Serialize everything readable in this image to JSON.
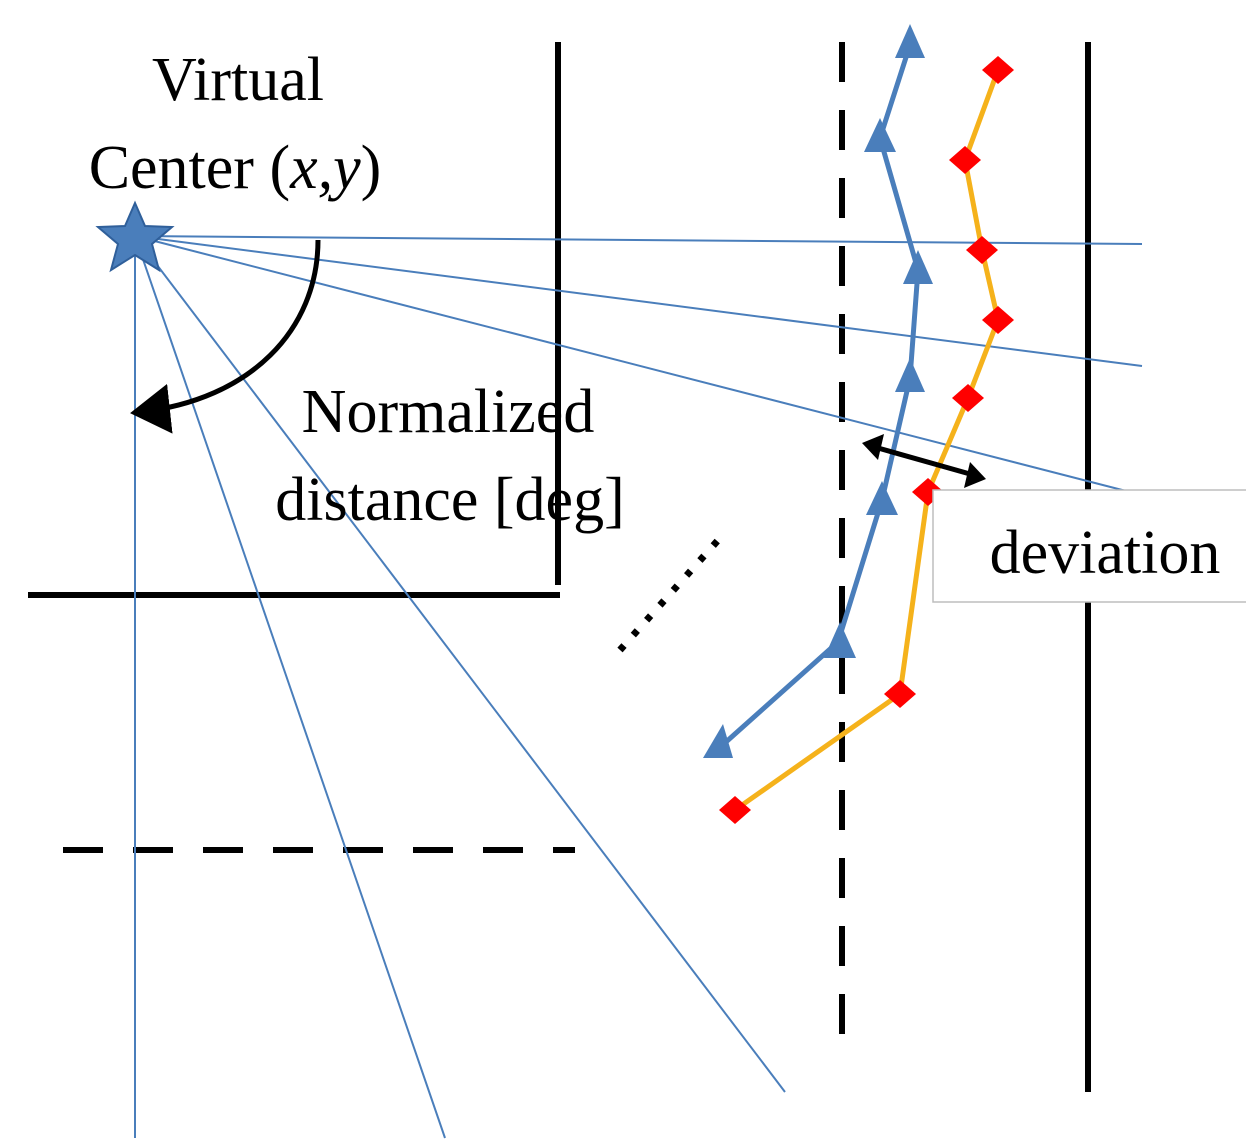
{
  "labels": {
    "virtual_center_line1": "Virtual",
    "virtual_center_line2_prefix": "Center (",
    "virtual_center_line2_vars": "x,y",
    "virtual_center_line2_suffix": ")",
    "normalized_line1": "Normalized",
    "normalized_line2": "distance [deg]",
    "deviation": "deviation"
  },
  "colors": {
    "ray": "#4a7ebb",
    "boundary": "#000000",
    "blue_track": "#4a7ebb",
    "orange_track": "#f5b21b",
    "orange_marker": "#ff0000",
    "star": "#4a7ebb"
  },
  "icons": {
    "center_marker": "star-icon",
    "blue_marker": "triangle-icon",
    "orange_marker": "diamond-icon"
  }
}
